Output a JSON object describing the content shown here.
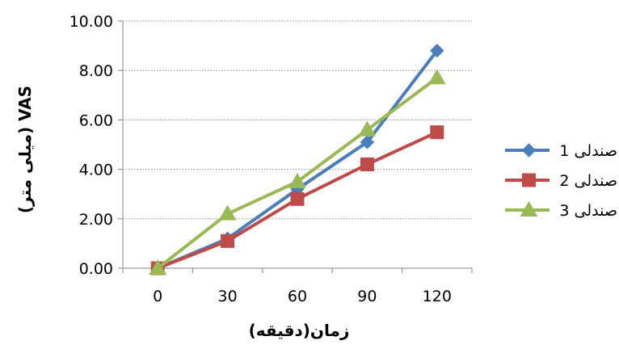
{
  "chart_data": {
    "type": "line",
    "xlabel": "زمان(دقیقه)",
    "ylabel": "VAS (میلی متر)",
    "x": [
      0,
      30,
      60,
      90,
      120
    ],
    "ylim": [
      0,
      10
    ],
    "yticks": [
      0,
      2,
      4,
      6,
      8,
      10
    ],
    "yticks_labels": [
      "0.00",
      "2.00",
      "4.00",
      "6.00",
      "8.00",
      "10.00"
    ],
    "grid": "horizontal dotted",
    "legend": "right",
    "series": [
      {
        "name": "صندلی 1",
        "values": [
          0,
          1.2,
          3.2,
          5.1,
          8.8
        ],
        "color": "#4a7ebb",
        "marker": "diamond"
      },
      {
        "name": "صندلی 2",
        "values": [
          0,
          1.1,
          2.8,
          4.2,
          5.5
        ],
        "color": "#be4b48",
        "marker": "square"
      },
      {
        "name": "صندلی 3",
        "values": [
          0,
          2.2,
          3.5,
          5.6,
          7.7
        ],
        "color": "#98b954",
        "marker": "triangle"
      }
    ]
  }
}
